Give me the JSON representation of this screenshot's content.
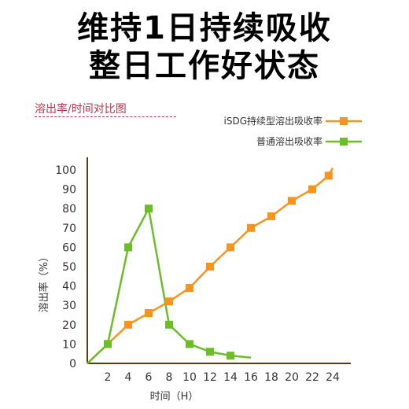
{
  "headline": {
    "line1": "维持1日持续吸收",
    "line2": "整日工作好状态"
  },
  "chart_data": {
    "type": "line",
    "subtitle": "溶出率/时间对比图",
    "xlabel": "时间（H）",
    "ylabel": "溶出率（%）",
    "x_ticks": [
      "2",
      "4",
      "6",
      "8",
      "10",
      "12",
      "14",
      "16",
      "18",
      "20",
      "22",
      "24"
    ],
    "y_ticks": [
      "0",
      "10",
      "20",
      "30",
      "40",
      "50",
      "60",
      "70",
      "80",
      "90",
      "100"
    ],
    "xlim": [
      0,
      24
    ],
    "ylim": [
      0,
      100
    ],
    "legend_position": "top-right",
    "series": [
      {
        "name": "iSDG持续型溶出吸收率",
        "color": "#f7941d",
        "x": [
          2,
          4,
          6,
          8,
          10,
          12,
          14,
          16,
          18,
          20,
          22,
          23.6
        ],
        "y": [
          10,
          20,
          26,
          32,
          39,
          50,
          60,
          70,
          76,
          84,
          90,
          97
        ]
      },
      {
        "name": "普通溶出吸收率",
        "color": "#6cbd27",
        "x": [
          2,
          4,
          6,
          8,
          10,
          12,
          14
        ],
        "y": [
          10,
          60,
          80,
          20,
          10,
          6,
          4
        ]
      }
    ]
  }
}
